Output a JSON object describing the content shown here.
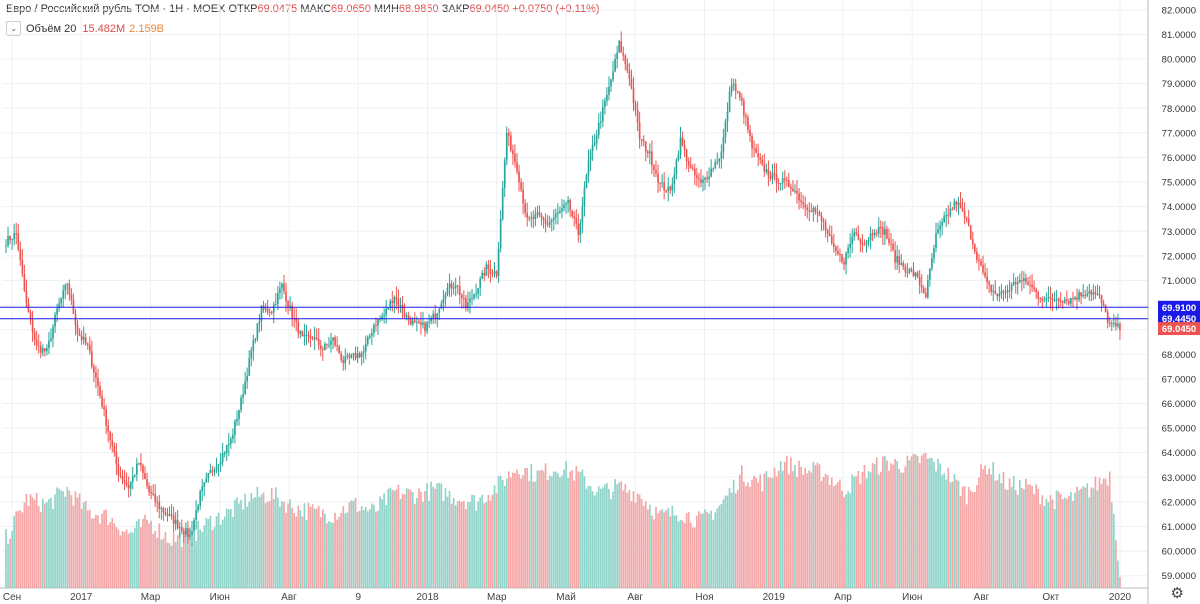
{
  "header": {
    "symbol": "Евро / Российский рубль TOM · 1H · MOEX",
    "open_label": "ОТКР",
    "open": "69.0475",
    "high_label": "МАКС",
    "high": "69.0650",
    "low_label": "МИН",
    "low": "68.9850",
    "close_label": "ЗАКР",
    "close": "69.0450",
    "change": "+0.0750 (+0.11%)"
  },
  "volume_legend": {
    "label": "Объём 20",
    "value1": "15.482M",
    "value2": "2.159B"
  },
  "colors": {
    "up": "#26a69a",
    "down": "#ef5350",
    "vol_up": "#8fd3c9",
    "vol_down": "#f4a5a6",
    "hline": "#1a1ae6"
  },
  "icons": {
    "collapse": "chevron-down-icon",
    "settings": "gear-icon"
  },
  "chart_data": {
    "type": "candlestick",
    "ylim": [
      58.5,
      82.4
    ],
    "y_ticks": [
      "59.0000",
      "60.0000",
      "61.0000",
      "62.0000",
      "63.0000",
      "64.0000",
      "65.0000",
      "66.0000",
      "67.0000",
      "68.0000",
      "69.0000",
      "70.0000",
      "71.0000",
      "72.0000",
      "73.0000",
      "74.0000",
      "75.0000",
      "76.0000",
      "77.0000",
      "78.0000",
      "79.0000",
      "80.0000",
      "81.0000",
      "82.0000"
    ],
    "x_ticks": [
      "Сен",
      "2017",
      "Мар",
      "Июн",
      "Авг",
      "9",
      "2018",
      "Мар",
      "Май",
      "Авг",
      "Ноя",
      "2019",
      "Апр",
      "Июн",
      "Авг",
      "Окт",
      "2020"
    ],
    "price_labels": [
      {
        "label": "69.9100",
        "value": 69.91,
        "color": "#1a1ae6"
      },
      {
        "label": "69.4450",
        "value": 69.445,
        "color": "#1a1ae6"
      },
      {
        "label": "69.0450",
        "value": 69.045,
        "color": "#ef5350"
      }
    ],
    "horizontal_lines": [
      69.91,
      69.445
    ],
    "close_anchors": [
      [
        0,
        72.6
      ],
      [
        5,
        72.9
      ],
      [
        10,
        70.0
      ],
      [
        15,
        68.3
      ],
      [
        20,
        68.1
      ],
      [
        25,
        69.8
      ],
      [
        30,
        70.9
      ],
      [
        35,
        68.9
      ],
      [
        40,
        68.3
      ],
      [
        45,
        66.7
      ],
      [
        50,
        64.9
      ],
      [
        55,
        63.2
      ],
      [
        60,
        62.6
      ],
      [
        65,
        63.6
      ],
      [
        70,
        62.4
      ],
      [
        75,
        61.8
      ],
      [
        80,
        61.4
      ],
      [
        85,
        61.0
      ],
      [
        90,
        60.6
      ],
      [
        95,
        62.3
      ],
      [
        100,
        63.2
      ],
      [
        105,
        63.8
      ],
      [
        110,
        64.5
      ],
      [
        115,
        66.1
      ],
      [
        120,
        68.1
      ],
      [
        125,
        69.8
      ],
      [
        130,
        69.8
      ],
      [
        135,
        70.8
      ],
      [
        140,
        69.6
      ],
      [
        145,
        68.6
      ],
      [
        150,
        68.7
      ],
      [
        155,
        68.2
      ],
      [
        160,
        68.6
      ],
      [
        165,
        67.7
      ],
      [
        170,
        67.9
      ],
      [
        175,
        68.1
      ],
      [
        180,
        69.2
      ],
      [
        185,
        69.6
      ],
      [
        190,
        70.4
      ],
      [
        195,
        69.6
      ],
      [
        200,
        69.2
      ],
      [
        205,
        69.1
      ],
      [
        210,
        69.6
      ],
      [
        215,
        70.6
      ],
      [
        220,
        70.9
      ],
      [
        225,
        69.9
      ],
      [
        230,
        70.6
      ],
      [
        235,
        71.5
      ],
      [
        240,
        71.3
      ],
      [
        245,
        77.0
      ],
      [
        250,
        75.6
      ],
      [
        255,
        73.4
      ],
      [
        260,
        73.6
      ],
      [
        265,
        73.3
      ],
      [
        270,
        73.7
      ],
      [
        275,
        74.1
      ],
      [
        280,
        72.9
      ],
      [
        285,
        75.8
      ],
      [
        290,
        77.3
      ],
      [
        295,
        78.8
      ],
      [
        300,
        80.6
      ],
      [
        305,
        79.3
      ],
      [
        310,
        76.8
      ],
      [
        315,
        76.1
      ],
      [
        320,
        74.9
      ],
      [
        325,
        74.6
      ],
      [
        330,
        76.7
      ],
      [
        335,
        75.5
      ],
      [
        340,
        74.9
      ],
      [
        345,
        75.5
      ],
      [
        350,
        76.2
      ],
      [
        355,
        79.1
      ],
      [
        360,
        78.2
      ],
      [
        365,
        76.4
      ],
      [
        370,
        75.6
      ],
      [
        375,
        75.2
      ],
      [
        380,
        75.0
      ],
      [
        385,
        74.8
      ],
      [
        390,
        74.1
      ],
      [
        395,
        73.9
      ],
      [
        400,
        73.3
      ],
      [
        405,
        72.2
      ],
      [
        410,
        71.8
      ],
      [
        415,
        73.0
      ],
      [
        420,
        72.5
      ],
      [
        425,
        73.1
      ],
      [
        430,
        73.0
      ],
      [
        435,
        71.9
      ],
      [
        440,
        71.5
      ],
      [
        445,
        71.2
      ],
      [
        450,
        70.4
      ],
      [
        455,
        72.8
      ],
      [
        460,
        73.6
      ],
      [
        465,
        74.2
      ],
      [
        470,
        73.4
      ],
      [
        475,
        72.0
      ],
      [
        480,
        70.8
      ],
      [
        485,
        70.4
      ],
      [
        490,
        70.6
      ],
      [
        495,
        71.0
      ],
      [
        500,
        70.9
      ],
      [
        505,
        70.4
      ],
      [
        510,
        70.2
      ],
      [
        515,
        70.3
      ],
      [
        520,
        70.2
      ],
      [
        525,
        70.4
      ],
      [
        530,
        70.6
      ],
      [
        535,
        70.3
      ],
      [
        540,
        69.2
      ],
      [
        545,
        69.05
      ]
    ],
    "vol_anchors": [
      [
        0,
        60.5
      ],
      [
        10,
        62.1
      ],
      [
        20,
        61.9
      ],
      [
        30,
        62.5
      ],
      [
        40,
        61.6
      ],
      [
        50,
        61.4
      ],
      [
        60,
        60.7
      ],
      [
        70,
        61.2
      ],
      [
        80,
        60.5
      ],
      [
        90,
        60.6
      ],
      [
        100,
        61.2
      ],
      [
        110,
        61.6
      ],
      [
        120,
        62.2
      ],
      [
        130,
        62.3
      ],
      [
        140,
        61.8
      ],
      [
        150,
        61.6
      ],
      [
        160,
        61.5
      ],
      [
        170,
        61.9
      ],
      [
        180,
        61.6
      ],
      [
        190,
        62.4
      ],
      [
        200,
        62.3
      ],
      [
        210,
        62.5
      ],
      [
        220,
        62.2
      ],
      [
        230,
        62.0
      ],
      [
        240,
        62.6
      ],
      [
        250,
        63.4
      ],
      [
        260,
        63.1
      ],
      [
        270,
        63.4
      ],
      [
        280,
        63.1
      ],
      [
        290,
        62.4
      ],
      [
        300,
        62.6
      ],
      [
        310,
        62.3
      ],
      [
        320,
        61.4
      ],
      [
        330,
        61.6
      ],
      [
        340,
        61.2
      ],
      [
        350,
        61.9
      ],
      [
        360,
        63.1
      ],
      [
        370,
        62.8
      ],
      [
        380,
        63.6
      ],
      [
        390,
        63.3
      ],
      [
        400,
        63.2
      ],
      [
        410,
        62.5
      ],
      [
        420,
        63.2
      ],
      [
        430,
        63.6
      ],
      [
        440,
        63.5
      ],
      [
        450,
        63.8
      ],
      [
        460,
        63.2
      ],
      [
        470,
        62.3
      ],
      [
        480,
        63.5
      ],
      [
        490,
        62.7
      ],
      [
        500,
        62.6
      ],
      [
        510,
        62.1
      ],
      [
        520,
        62.1
      ],
      [
        530,
        62.5
      ],
      [
        540,
        63.1
      ],
      [
        545,
        59.2
      ]
    ],
    "series_count": 546
  }
}
